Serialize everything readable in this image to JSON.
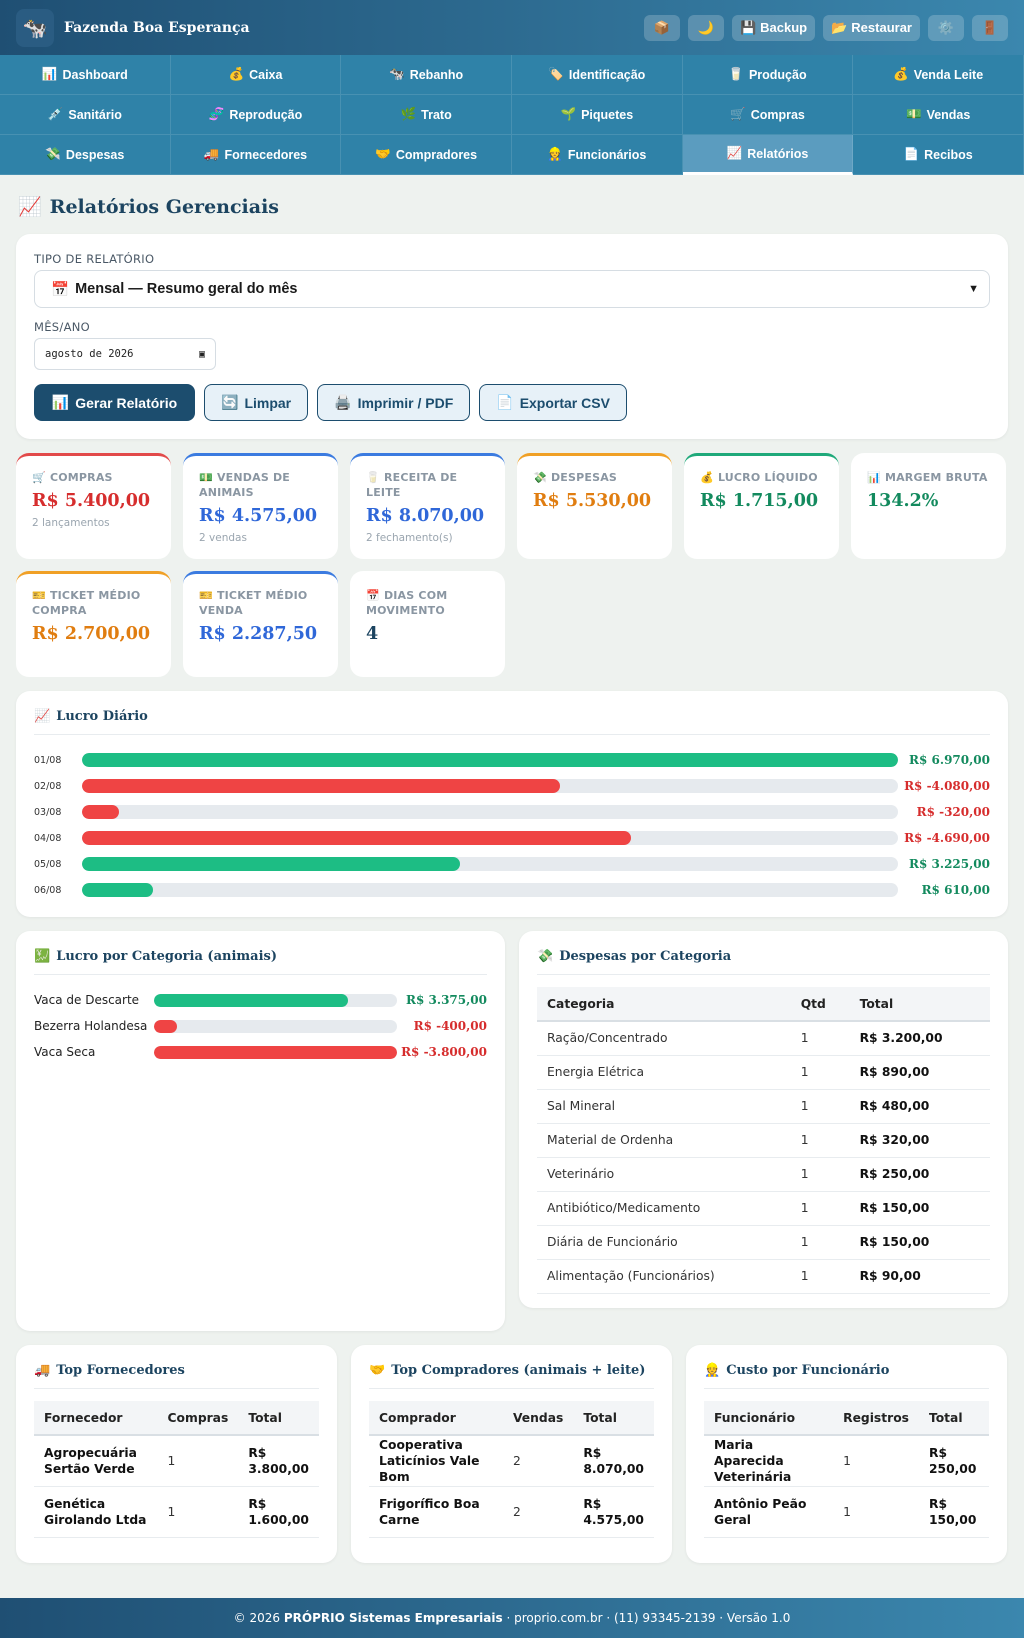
{
  "header": {
    "logo_icon": "🐄",
    "title": "Fazenda Boa Esperança",
    "buttons": [
      {
        "icon": "📦",
        "label": ""
      },
      {
        "icon": "🌙",
        "label": ""
      },
      {
        "icon": "💾",
        "label": "Backup"
      },
      {
        "icon": "📂",
        "label": "Restaurar"
      },
      {
        "icon": "⚙️",
        "label": ""
      },
      {
        "icon": "🚪",
        "label": ""
      }
    ]
  },
  "nav": [
    {
      "icon": "📊",
      "label": "Dashboard"
    },
    {
      "icon": "💰",
      "label": "Caixa"
    },
    {
      "icon": "🐄",
      "label": "Rebanho"
    },
    {
      "icon": "🏷️",
      "label": "Identificação"
    },
    {
      "icon": "🥛",
      "label": "Produção"
    },
    {
      "icon": "💰",
      "label": "Venda Leite"
    },
    {
      "icon": "💉",
      "label": "Sanitário"
    },
    {
      "icon": "🧬",
      "label": "Reprodução"
    },
    {
      "icon": "🌿",
      "label": "Trato"
    },
    {
      "icon": "🌱",
      "label": "Piquetes"
    },
    {
      "icon": "🛒",
      "label": "Compras"
    },
    {
      "icon": "💵",
      "label": "Vendas"
    },
    {
      "icon": "💸",
      "label": "Despesas"
    },
    {
      "icon": "🚚",
      "label": "Fornecedores"
    },
    {
      "icon": "🤝",
      "label": "Compradores"
    },
    {
      "icon": "👷",
      "label": "Funcionários"
    },
    {
      "icon": "📈",
      "label": "Relatórios",
      "active": true
    },
    {
      "icon": "📄",
      "label": "Recibos"
    }
  ],
  "page": {
    "icon": "📈",
    "title": "Relatórios Gerenciais"
  },
  "form": {
    "type_label": "TIPO DE RELATÓRIO",
    "type_icon": "📅",
    "type_value": "Mensal — Resumo geral do mês",
    "month_label": "MÊS/ANO",
    "month_value": "agosto de 2026",
    "buttons": [
      {
        "icon": "📊",
        "label": "Gerar Relatório"
      },
      {
        "icon": "🔄",
        "label": "Limpar"
      },
      {
        "icon": "🖨️",
        "label": "Imprimir / PDF"
      },
      {
        "icon": "📄",
        "label": "Exportar CSV"
      }
    ]
  },
  "kpis": [
    {
      "icon": "🛒",
      "label": "COMPRAS",
      "value": "R$ 5.400,00",
      "sub": "2 lançamentos",
      "color": "red",
      "accent": "red"
    },
    {
      "icon": "💵",
      "label": "VENDAS DE ANIMAIS",
      "value": "R$ 4.575,00",
      "sub": "2 vendas",
      "color": "blue",
      "accent": "blue"
    },
    {
      "icon": "🥛",
      "label": "RECEITA DE LEITE",
      "value": "R$ 8.070,00",
      "sub": "2 fechamento(s)",
      "color": "blue",
      "accent": "blue"
    },
    {
      "icon": "💸",
      "label": "DESPESAS",
      "value": "R$ 5.530,00",
      "sub": "",
      "color": "orange",
      "accent": "orange"
    },
    {
      "icon": "💰",
      "label": "LUCRO LÍQUIDO",
      "value": "R$ 1.715,00",
      "sub": "",
      "color": "green",
      "accent": "green"
    },
    {
      "icon": "📊",
      "label": "MARGEM BRUTA",
      "value": "134.2%",
      "sub": "",
      "color": "green",
      "accent": "none"
    },
    {
      "icon": "🎫",
      "label": "TICKET MÉDIO COMPRA",
      "value": "R$ 2.700,00",
      "sub": "",
      "color": "orange",
      "accent": "orange"
    },
    {
      "icon": "🎫",
      "label": "TICKET MÉDIO VENDA",
      "value": "R$ 2.287,50",
      "sub": "",
      "color": "blue",
      "accent": "blue"
    },
    {
      "icon": "📅",
      "label": "DIAS COM MOVIMENTO",
      "value": "4",
      "sub": "",
      "color": "navy",
      "accent": "none"
    }
  ],
  "lucro_diario": {
    "icon": "📈",
    "title": "Lucro Diário",
    "rows": [
      {
        "d": "01/08",
        "v": 6970,
        "label": "R$ 6.970,00"
      },
      {
        "d": "02/08",
        "v": -4080,
        "label": "R$ -4.080,00"
      },
      {
        "d": "03/08",
        "v": -320,
        "label": "R$ -320,00"
      },
      {
        "d": "04/08",
        "v": -4690,
        "label": "R$ -4.690,00"
      },
      {
        "d": "05/08",
        "v": 3225,
        "label": "R$ 3.225,00"
      },
      {
        "d": "06/08",
        "v": 610,
        "label": "R$ 610,00"
      }
    ]
  },
  "lucro_categoria": {
    "icon": "💹",
    "title": "Lucro por Categoria (animais)",
    "rows": [
      {
        "name": "Vaca de Descarte",
        "v": 3375,
        "label": "R$ 3.375,00"
      },
      {
        "name": "Bezerra Holandesa",
        "v": -400,
        "label": "R$ -400,00"
      },
      {
        "name": "Vaca Seca",
        "v": -3800,
        "label": "R$ -3.800,00"
      }
    ]
  },
  "despesas": {
    "icon": "💸",
    "title": "Despesas por Categoria",
    "headers": [
      "Categoria",
      "Qtd",
      "Total"
    ],
    "rows": [
      [
        "Ração/Concentrado",
        "1",
        "R$ 3.200,00"
      ],
      [
        "Energia Elétrica",
        "1",
        "R$ 890,00"
      ],
      [
        "Sal Mineral",
        "1",
        "R$ 480,00"
      ],
      [
        "Material de Ordenha",
        "1",
        "R$ 320,00"
      ],
      [
        "Veterinário",
        "1",
        "R$ 250,00"
      ],
      [
        "Antibiótico/Medicamento",
        "1",
        "R$ 150,00"
      ],
      [
        "Diária de Funcionário",
        "1",
        "R$ 150,00"
      ],
      [
        "Alimentação (Funcionários)",
        "1",
        "R$ 90,00"
      ]
    ]
  },
  "top_fornecedores": {
    "icon": "🚚",
    "title": "Top Fornecedores",
    "headers": [
      "Fornecedor",
      "Compras",
      "Total"
    ],
    "rows": [
      [
        "Agropecuária Sertão Verde",
        "1",
        "R$ 3.800,00"
      ],
      [
        "Genética Girolando Ltda",
        "1",
        "R$ 1.600,00"
      ]
    ]
  },
  "top_compradores": {
    "icon": "🤝",
    "title": "Top Compradores (animais + leite)",
    "headers": [
      "Comprador",
      "Vendas",
      "Total"
    ],
    "rows": [
      [
        "Cooperativa Laticínios Vale Bom",
        "2",
        "R$ 8.070,00"
      ],
      [
        "Frigorífico Boa Carne",
        "2",
        "R$ 4.575,00"
      ]
    ]
  },
  "custo_funcionario": {
    "icon": "👷",
    "title": "Custo por Funcionário",
    "headers": [
      "Funcionário",
      "Registros",
      "Total"
    ],
    "rows": [
      [
        "Maria Aparecida Veterinária",
        "1",
        "R$ 250,00"
      ],
      [
        "Antônio Peão Geral",
        "1",
        "R$ 150,00"
      ]
    ]
  },
  "footer": {
    "copy": "© 2026",
    "company": "PRÓPRIO Sistemas Empresariais",
    "rest": "· proprio.com.br · (11) 93345-2139 · Versão 1.0"
  },
  "colors": {
    "positive": "#1dbd84",
    "negative": "#ef4444",
    "header": "#1f4f73",
    "nav": "#2f82a8"
  }
}
